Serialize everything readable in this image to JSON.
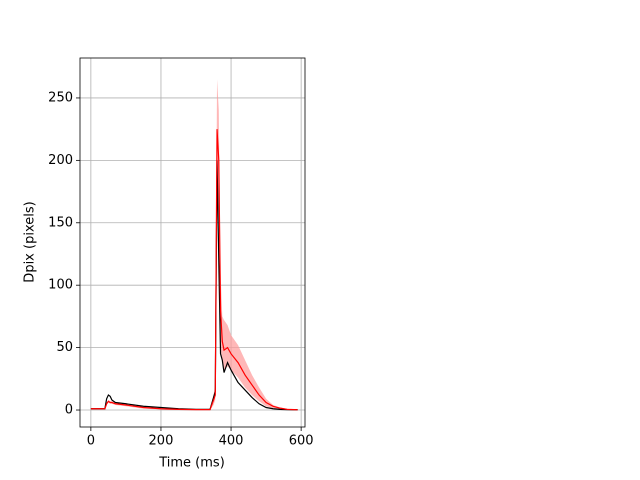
{
  "chart_data": {
    "type": "line",
    "xlabel": "Time (ms)",
    "ylabel": "Dpix (pixels)",
    "x": [
      0,
      20,
      40,
      45,
      50,
      55,
      60,
      70,
      100,
      150,
      200,
      250,
      300,
      340,
      350,
      355,
      360,
      365,
      370,
      375,
      380,
      390,
      400,
      420,
      440,
      460,
      480,
      500,
      520,
      540,
      560,
      590
    ],
    "series": [
      {
        "color": "#000000",
        "values": [
          1,
          1,
          1,
          9,
          12,
          11,
          8,
          6,
          5,
          3,
          2,
          1,
          0.5,
          0.5,
          10,
          15,
          200,
          120,
          45,
          40,
          30,
          38,
          32,
          22,
          16,
          10,
          5,
          2,
          1,
          0.5,
          0.3,
          0.2
        ]
      },
      {
        "color": "#ff0000",
        "band_color": "#ff9999",
        "values": [
          1,
          1,
          1,
          5,
          7,
          6,
          6,
          5,
          4,
          2,
          1,
          0.5,
          0.3,
          0.3,
          8,
          12,
          225,
          200,
          80,
          55,
          48,
          50,
          45,
          38,
          28,
          20,
          12,
          6,
          3,
          1.5,
          0.5,
          0.2
        ],
        "band_upper": [
          1.5,
          1.5,
          1.5,
          6,
          8,
          7,
          7,
          6,
          5,
          3,
          1.5,
          1,
          0.5,
          0.5,
          12,
          20,
          265,
          240,
          110,
          75,
          72,
          68,
          60,
          52,
          40,
          28,
          18,
          9,
          4,
          2,
          1,
          0.3
        ],
        "band_lower": [
          0.5,
          0.5,
          0.5,
          4,
          6,
          5,
          5,
          4,
          3,
          1,
          0.5,
          0,
          0,
          0,
          4,
          8,
          185,
          160,
          50,
          38,
          32,
          35,
          32,
          26,
          18,
          12,
          7,
          3,
          1.5,
          0.8,
          0.2,
          0.1
        ]
      }
    ],
    "xlim": [
      -31,
      611
    ],
    "ylim": [
      -13.6,
      282
    ],
    "xticks": [
      0,
      200,
      400,
      600
    ],
    "yticks": [
      0,
      50,
      100,
      150,
      200,
      250
    ],
    "grid": true
  }
}
